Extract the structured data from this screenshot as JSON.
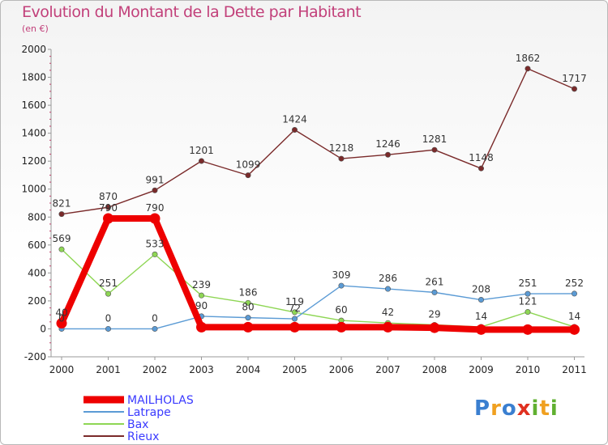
{
  "header": {
    "title": "Evolution du Montant de la Dette par Habitant",
    "subtitle": "(en €)"
  },
  "logo": {
    "text": "Proxiti",
    "letters": [
      {
        "ch": "P",
        "color": "#3a7fd0"
      },
      {
        "ch": "r",
        "color": "#f0a020"
      },
      {
        "ch": "o",
        "color": "#3a7fd0"
      },
      {
        "ch": "x",
        "color": "#e03020"
      },
      {
        "ch": "i",
        "color": "#60b030"
      },
      {
        "ch": "t",
        "color": "#f0a020"
      },
      {
        "ch": "i",
        "color": "#60b030"
      }
    ]
  },
  "chart_data": {
    "type": "line",
    "title": "Evolution du Montant de la Dette par Habitant",
    "subtitle": "(en €)",
    "xlabel": "",
    "ylabel": "",
    "ylim": [
      -200,
      2000
    ],
    "yticks": [
      -200,
      0,
      200,
      400,
      600,
      800,
      1000,
      1200,
      1400,
      1600,
      1800,
      2000
    ],
    "x": [
      "2000",
      "2001",
      "2002",
      "2003",
      "2004",
      "2005",
      "2006",
      "2007",
      "2008",
      "2009",
      "2010",
      "2011"
    ],
    "grid": false,
    "legend_position": "bottom-left",
    "series": [
      {
        "name": "MAILHOLAS",
        "color": "#ee0000",
        "values": [
          40,
          790,
          790,
          12,
          12,
          12,
          12,
          12,
          8,
          -5,
          -5,
          -5
        ],
        "labels": [
          "40",
          "790",
          "790",
          "",
          "",
          "",
          "",
          "",
          "",
          "",
          "",
          ""
        ]
      },
      {
        "name": "Latrape",
        "color": "#5b9bd5",
        "values": [
          0,
          0,
          0,
          90,
          80,
          72,
          309,
          286,
          261,
          208,
          251,
          252
        ],
        "labels": [
          "0",
          "0",
          "0",
          "90",
          "80",
          "72",
          "309",
          "286",
          "261",
          "208",
          "251",
          "252"
        ]
      },
      {
        "name": "Bax",
        "color": "#8ed654",
        "values": [
          569,
          251,
          533,
          239,
          186,
          119,
          60,
          42,
          29,
          14,
          121,
          14
        ],
        "labels": [
          "569",
          "251",
          "533",
          "239",
          "186",
          "119",
          "60",
          "42",
          "29",
          "14",
          "121",
          "14"
        ]
      },
      {
        "name": "Rieux",
        "color": "#7a2a2a",
        "values": [
          821,
          870,
          991,
          1201,
          1099,
          1424,
          1218,
          1246,
          1281,
          1148,
          1862,
          1717
        ],
        "labels": [
          "821",
          "870",
          "991",
          "1201",
          "1099",
          "1424",
          "1218",
          "1246",
          "1281",
          "1148",
          "1862",
          "1717"
        ]
      }
    ]
  }
}
